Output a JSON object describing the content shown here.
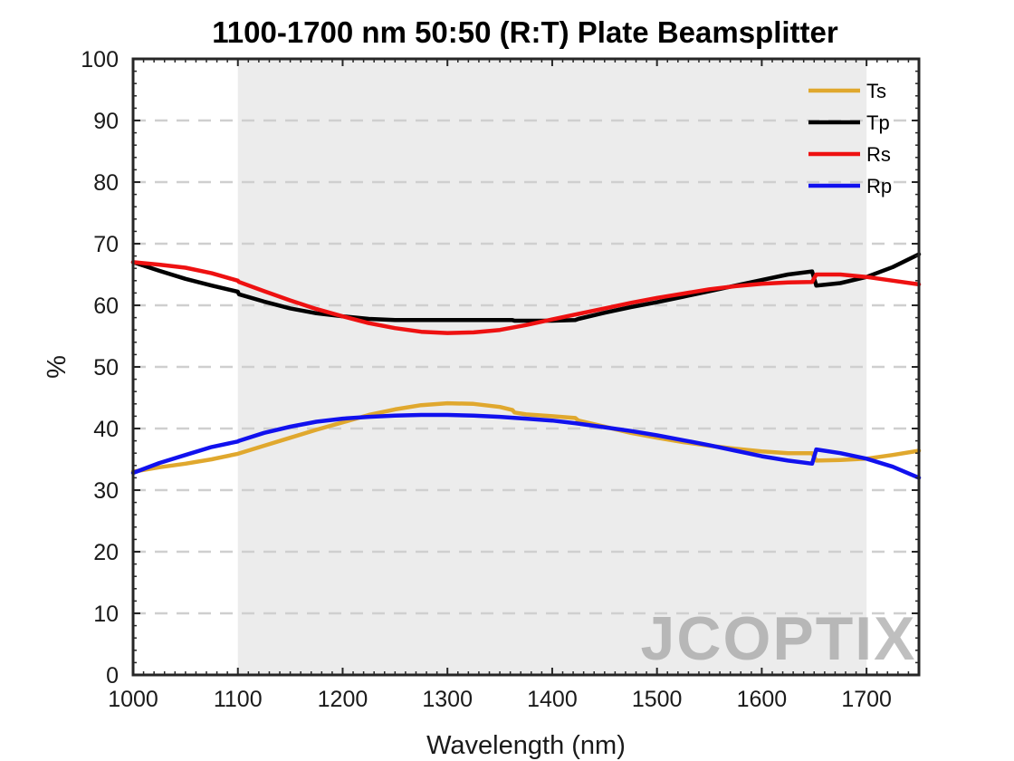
{
  "chart_data": {
    "type": "line",
    "title": "1100-1700 nm 50:50 (R:T) Plate Beamsplitter",
    "xlabel": "Wavelength (nm)",
    "ylabel": "%",
    "xlim": [
      1000,
      1750
    ],
    "ylim": [
      0,
      100
    ],
    "xticks": [
      "1000",
      "1100",
      "1200",
      "1300",
      "1400",
      "1500",
      "1600",
      "1700"
    ],
    "yticks": [
      "0",
      "10",
      "20",
      "30",
      "40",
      "50",
      "60",
      "70",
      "80",
      "90",
      "100"
    ],
    "grid": "horizontal dashed",
    "shaded_band": [
      1100,
      1700
    ],
    "legend_position": "top-right",
    "watermark": "JCOPTIX",
    "series": [
      {
        "name": "Ts",
        "color": "#E0A82E",
        "x": [
          1000,
          1025,
          1050,
          1075,
          1100,
          1125,
          1150,
          1175,
          1200,
          1225,
          1250,
          1275,
          1300,
          1325,
          1350,
          1362,
          1364,
          1375,
          1400,
          1422,
          1425,
          1450,
          1475,
          1500,
          1525,
          1550,
          1575,
          1600,
          1625,
          1648,
          1652,
          1675,
          1700,
          1725,
          1750
        ],
        "values": [
          33.0,
          33.7,
          34.3,
          35.0,
          35.9,
          37.2,
          38.5,
          39.8,
          41.0,
          42.2,
          43.1,
          43.8,
          44.1,
          44.0,
          43.5,
          43.0,
          42.6,
          42.3,
          42.0,
          41.7,
          41.3,
          40.3,
          39.3,
          38.5,
          37.8,
          37.2,
          36.7,
          36.3,
          36.0,
          36.0,
          34.8,
          34.9,
          35.1,
          35.7,
          36.4
        ]
      },
      {
        "name": "Tp",
        "color": "#000000",
        "x": [
          1000,
          1025,
          1050,
          1075,
          1100,
          1101,
          1125,
          1150,
          1175,
          1200,
          1225,
          1250,
          1275,
          1300,
          1325,
          1350,
          1362,
          1364,
          1400,
          1422,
          1425,
          1450,
          1475,
          1500,
          1525,
          1550,
          1575,
          1600,
          1625,
          1648,
          1652,
          1675,
          1700,
          1725,
          1750
        ],
        "values": [
          67.0,
          65.6,
          64.3,
          63.2,
          62.2,
          61.8,
          60.6,
          59.5,
          58.7,
          58.2,
          57.8,
          57.6,
          57.6,
          57.6,
          57.6,
          57.6,
          57.6,
          57.5,
          57.5,
          57.6,
          57.8,
          58.8,
          59.7,
          60.5,
          61.4,
          62.3,
          63.2,
          64.1,
          65.0,
          65.5,
          63.2,
          63.6,
          64.6,
          66.2,
          68.3
        ]
      },
      {
        "name": "Rs",
        "color": "#EE1111",
        "x": [
          1000,
          1025,
          1050,
          1075,
          1100,
          1101,
          1125,
          1150,
          1175,
          1200,
          1225,
          1250,
          1275,
          1300,
          1325,
          1350,
          1375,
          1400,
          1425,
          1450,
          1475,
          1500,
          1525,
          1550,
          1575,
          1600,
          1625,
          1648,
          1652,
          1675,
          1700,
          1725,
          1750
        ],
        "values": [
          67.0,
          66.6,
          66.1,
          65.2,
          64.0,
          63.8,
          62.3,
          60.8,
          59.4,
          58.2,
          57.1,
          56.3,
          55.7,
          55.5,
          55.6,
          56.0,
          56.8,
          57.7,
          58.6,
          59.5,
          60.4,
          61.2,
          61.9,
          62.6,
          63.1,
          63.5,
          63.7,
          63.8,
          65.0,
          65.0,
          64.6,
          64.0,
          63.4
        ]
      },
      {
        "name": "Rp",
        "color": "#1111EE",
        "x": [
          1000,
          1025,
          1050,
          1075,
          1100,
          1101,
          1125,
          1150,
          1175,
          1200,
          1225,
          1250,
          1275,
          1300,
          1325,
          1350,
          1375,
          1400,
          1425,
          1450,
          1475,
          1500,
          1525,
          1550,
          1575,
          1600,
          1625,
          1648,
          1652,
          1675,
          1700,
          1725,
          1750
        ],
        "values": [
          32.8,
          34.4,
          35.7,
          37.0,
          37.9,
          38.0,
          39.3,
          40.3,
          41.1,
          41.6,
          41.9,
          42.1,
          42.2,
          42.2,
          42.1,
          41.9,
          41.6,
          41.3,
          40.8,
          40.2,
          39.6,
          38.9,
          38.1,
          37.3,
          36.4,
          35.5,
          34.8,
          34.3,
          36.6,
          36.0,
          35.1,
          33.8,
          32.0
        ]
      }
    ]
  }
}
